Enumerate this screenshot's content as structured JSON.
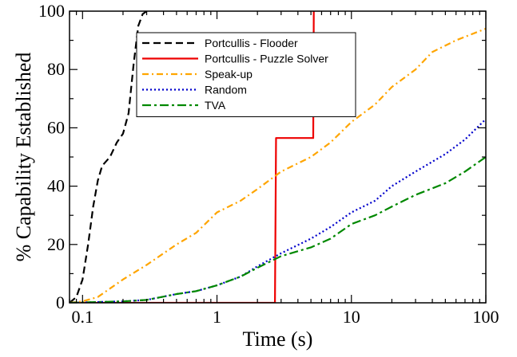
{
  "chart_data": {
    "type": "line",
    "title": "",
    "xlabel": "Time (s)",
    "ylabel": "% Capability Established",
    "x_scale": "log",
    "xlim": [
      0.08,
      100
    ],
    "ylim": [
      0,
      100
    ],
    "x_ticks": [
      0.1,
      1,
      10,
      100
    ],
    "x_tick_labels": [
      "0.1",
      "1",
      "10",
      "100"
    ],
    "y_ticks": [
      0,
      20,
      40,
      60,
      80,
      100
    ],
    "y_tick_labels": [
      "0",
      "20",
      "40",
      "60",
      "80",
      "100"
    ],
    "grid": false,
    "legend_position": "top-center",
    "series": [
      {
        "name": "Portcullis - Flooder",
        "color": "#000000",
        "dash": "dashed",
        "points": [
          [
            0.08,
            0
          ],
          [
            0.09,
            2
          ],
          [
            0.1,
            8
          ],
          [
            0.11,
            20
          ],
          [
            0.12,
            33
          ],
          [
            0.13,
            42
          ],
          [
            0.14,
            47
          ],
          [
            0.16,
            50
          ],
          [
            0.18,
            55
          ],
          [
            0.2,
            58
          ],
          [
            0.22,
            65
          ],
          [
            0.24,
            82
          ],
          [
            0.26,
            95
          ],
          [
            0.28,
            99
          ],
          [
            0.3,
            100
          ]
        ]
      },
      {
        "name": "Portcullis - Puzzle Solver",
        "color": "#ee0000",
        "dash": "solid",
        "points": [
          [
            0.08,
            0
          ],
          [
            2.7,
            0
          ],
          [
            2.75,
            56.5
          ],
          [
            5.2,
            56.5
          ],
          [
            5.25,
            100
          ]
        ]
      },
      {
        "name": "Speak-up",
        "color": "#ffa500",
        "dash": "dashdot",
        "points": [
          [
            0.08,
            0
          ],
          [
            0.1,
            0.5
          ],
          [
            0.13,
            2
          ],
          [
            0.2,
            8
          ],
          [
            0.3,
            13
          ],
          [
            0.5,
            20
          ],
          [
            0.7,
            24
          ],
          [
            1,
            31
          ],
          [
            1.5,
            35
          ],
          [
            2,
            39
          ],
          [
            3,
            45
          ],
          [
            5,
            50
          ],
          [
            7,
            55
          ],
          [
            10,
            62
          ],
          [
            15,
            68
          ],
          [
            20,
            74
          ],
          [
            30,
            80
          ],
          [
            40,
            86
          ],
          [
            60,
            90
          ],
          [
            100,
            94
          ]
        ]
      },
      {
        "name": "Random",
        "color": "#0000cc",
        "dash": "dotted",
        "points": [
          [
            0.08,
            0
          ],
          [
            0.2,
            0.5
          ],
          [
            0.3,
            1
          ],
          [
            0.5,
            3
          ],
          [
            0.7,
            4
          ],
          [
            1,
            6
          ],
          [
            1.5,
            9
          ],
          [
            2,
            12.5
          ],
          [
            3,
            17
          ],
          [
            5,
            22
          ],
          [
            7,
            26
          ],
          [
            10,
            31
          ],
          [
            15,
            35
          ],
          [
            20,
            40
          ],
          [
            30,
            45
          ],
          [
            50,
            51
          ],
          [
            70,
            56
          ],
          [
            100,
            63
          ]
        ]
      },
      {
        "name": "TVA",
        "color": "#008800",
        "dash": "longdashdot",
        "points": [
          [
            0.08,
            0
          ],
          [
            0.2,
            0.5
          ],
          [
            0.3,
            1
          ],
          [
            0.5,
            3
          ],
          [
            0.7,
            4
          ],
          [
            1,
            6
          ],
          [
            1.5,
            9
          ],
          [
            2,
            12
          ],
          [
            3,
            16
          ],
          [
            5,
            19
          ],
          [
            7,
            22
          ],
          [
            10,
            27
          ],
          [
            15,
            30
          ],
          [
            20,
            33
          ],
          [
            30,
            37
          ],
          [
            50,
            41
          ],
          [
            70,
            45
          ],
          [
            100,
            50
          ]
        ]
      }
    ]
  }
}
